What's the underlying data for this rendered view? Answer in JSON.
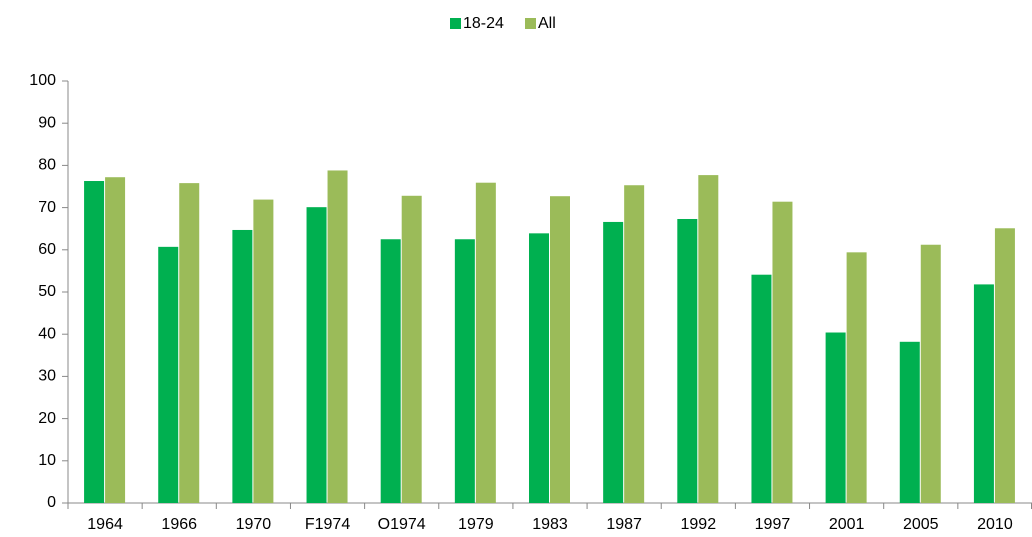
{
  "chart_data": {
    "type": "bar",
    "categories": [
      "1964",
      "1966",
      "1970",
      "F1974",
      "O1974",
      "1979",
      "1983",
      "1987",
      "1992",
      "1997",
      "2001",
      "2005",
      "2010"
    ],
    "series": [
      {
        "name": "18-24",
        "color": "#00b050",
        "values": [
          76.3,
          60.7,
          64.7,
          70.1,
          62.5,
          62.5,
          63.9,
          66.6,
          67.3,
          54.1,
          40.4,
          38.2,
          51.8
        ]
      },
      {
        "name": "All",
        "color": "#9bbb59",
        "values": [
          77.2,
          75.8,
          71.9,
          78.8,
          72.8,
          75.9,
          72.7,
          75.3,
          77.7,
          71.4,
          59.4,
          61.2,
          65.1
        ]
      }
    ],
    "ylim": [
      0,
      100
    ],
    "yticks": [
      0,
      10,
      20,
      30,
      40,
      50,
      60,
      70,
      80,
      90,
      100
    ],
    "legend": "top"
  }
}
